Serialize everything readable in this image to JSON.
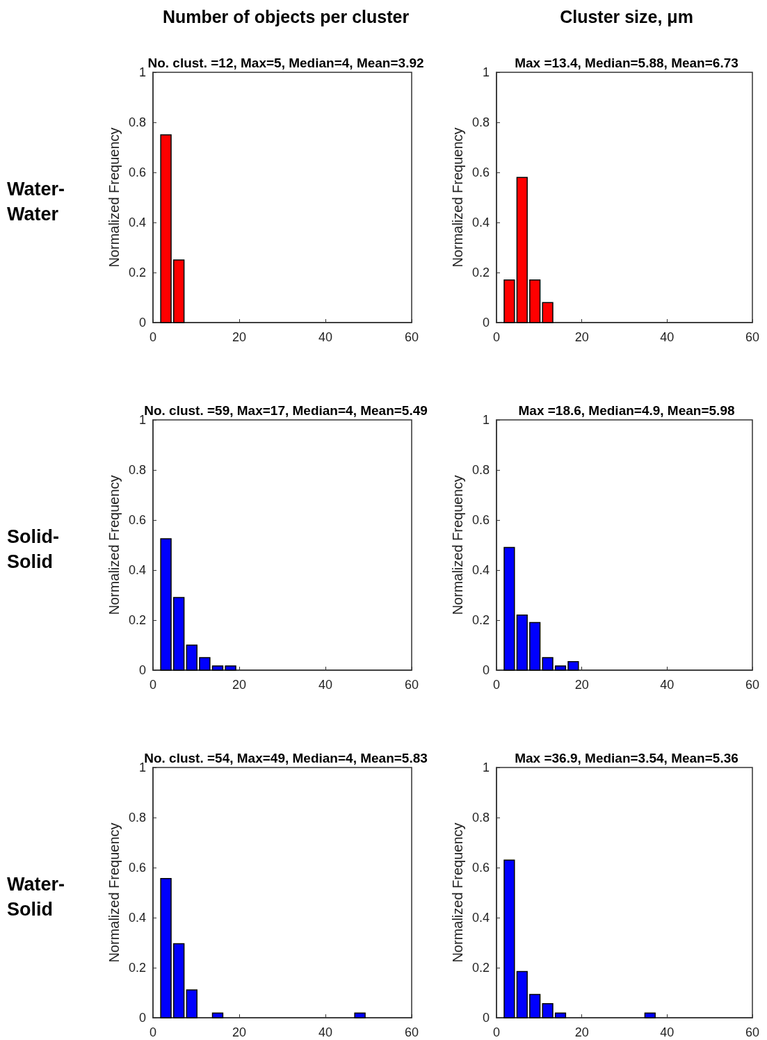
{
  "chart_data": [
    {
      "type": "histogram",
      "title": "Number of objects per cluster",
      "subtitle": "No. clust. =12, Max=5, Median=4, Mean=3.92",
      "ylabel": "Normalized Frequency",
      "annotations": [
        "Water-\nWater"
      ],
      "bins": [
        1.5,
        4.5,
        7.5
      ],
      "values": [
        0.75,
        0.25
      ],
      "color": "#ff0000",
      "xlim": [
        0,
        60
      ],
      "xticks": [
        0,
        20,
        40,
        60
      ],
      "ylim": [
        0,
        1
      ],
      "yticks": [
        0,
        0.2,
        0.4,
        0.6,
        0.8,
        1
      ],
      "grid": false
    },
    {
      "type": "histogram",
      "title": "Cluster size, μm",
      "subtitle": "Max =13.4, Median=5.88, Mean=6.73",
      "ylabel": "Normalized Frequency",
      "bins": [
        1.5,
        4.5,
        7.5,
        10.5,
        13.5
      ],
      "values": [
        0.17,
        0.58,
        0.17,
        0.08
      ],
      "color": "#ff0000",
      "xlim": [
        0,
        60
      ],
      "xticks": [
        0,
        20,
        40,
        60
      ],
      "ylim": [
        0,
        1
      ],
      "yticks": [
        0,
        0.2,
        0.4,
        0.6,
        0.8,
        1
      ],
      "grid": false
    },
    {
      "type": "histogram",
      "subtitle": "No. clust. =59, Max=17, Median=4, Mean=5.49",
      "ylabel": "Normalized Frequency",
      "annotations": [
        "Solid-\nSolid"
      ],
      "bins": [
        1.5,
        4.5,
        7.5,
        10.5,
        13.5,
        16.5,
        19.5
      ],
      "values": [
        0.525,
        0.29,
        0.1,
        0.05,
        0.017,
        0.017
      ],
      "color": "#0000ff",
      "xlim": [
        0,
        60
      ],
      "xticks": [
        0,
        20,
        40,
        60
      ],
      "ylim": [
        0,
        1
      ],
      "yticks": [
        0,
        0.2,
        0.4,
        0.6,
        0.8,
        1
      ],
      "grid": false
    },
    {
      "type": "histogram",
      "subtitle": "Max =18.6, Median=4.9, Mean=5.98",
      "ylabel": "Normalized Frequency",
      "bins": [
        1.5,
        4.5,
        7.5,
        10.5,
        13.5,
        16.5,
        19.5
      ],
      "values": [
        0.49,
        0.22,
        0.19,
        0.05,
        0.017,
        0.034
      ],
      "color": "#0000ff",
      "xlim": [
        0,
        60
      ],
      "xticks": [
        0,
        20,
        40,
        60
      ],
      "ylim": [
        0,
        1
      ],
      "yticks": [
        0,
        0.2,
        0.4,
        0.6,
        0.8,
        1
      ],
      "grid": false
    },
    {
      "type": "histogram",
      "subtitle": "No. clust. =54, Max=49, Median=4, Mean=5.83",
      "ylabel": "Normalized Frequency",
      "annotations": [
        "Water-\nSolid"
      ],
      "bins": [
        1.5,
        4.5,
        7.5,
        10.5,
        13.5,
        16.5,
        19.5,
        22.5,
        25.5,
        28.5,
        31.5,
        34.5,
        37.5,
        40.5,
        43.5,
        46.5,
        49.5
      ],
      "values": [
        0.556,
        0.296,
        0.111,
        0,
        0.019,
        0,
        0,
        0,
        0,
        0,
        0,
        0,
        0,
        0,
        0,
        0.019
      ],
      "color": "#0000ff",
      "xlim": [
        0,
        60
      ],
      "xticks": [
        0,
        20,
        40,
        60
      ],
      "ylim": [
        0,
        1
      ],
      "yticks": [
        0,
        0.2,
        0.4,
        0.6,
        0.8,
        1
      ],
      "grid": false
    },
    {
      "type": "histogram",
      "subtitle": "Max =36.9, Median=3.54, Mean=5.36",
      "ylabel": "Normalized Frequency",
      "bins": [
        1.5,
        4.5,
        7.5,
        10.5,
        13.5,
        16.5,
        19.5,
        22.5,
        25.5,
        28.5,
        31.5,
        34.5,
        37.5
      ],
      "values": [
        0.63,
        0.185,
        0.093,
        0.056,
        0.019,
        0,
        0,
        0,
        0,
        0,
        0,
        0.019
      ],
      "color": "#0000ff",
      "xlim": [
        0,
        60
      ],
      "xticks": [
        0,
        20,
        40,
        60
      ],
      "ylim": [
        0,
        1
      ],
      "yticks": [
        0,
        0.2,
        0.4,
        0.6,
        0.8,
        1
      ],
      "grid": false
    }
  ]
}
